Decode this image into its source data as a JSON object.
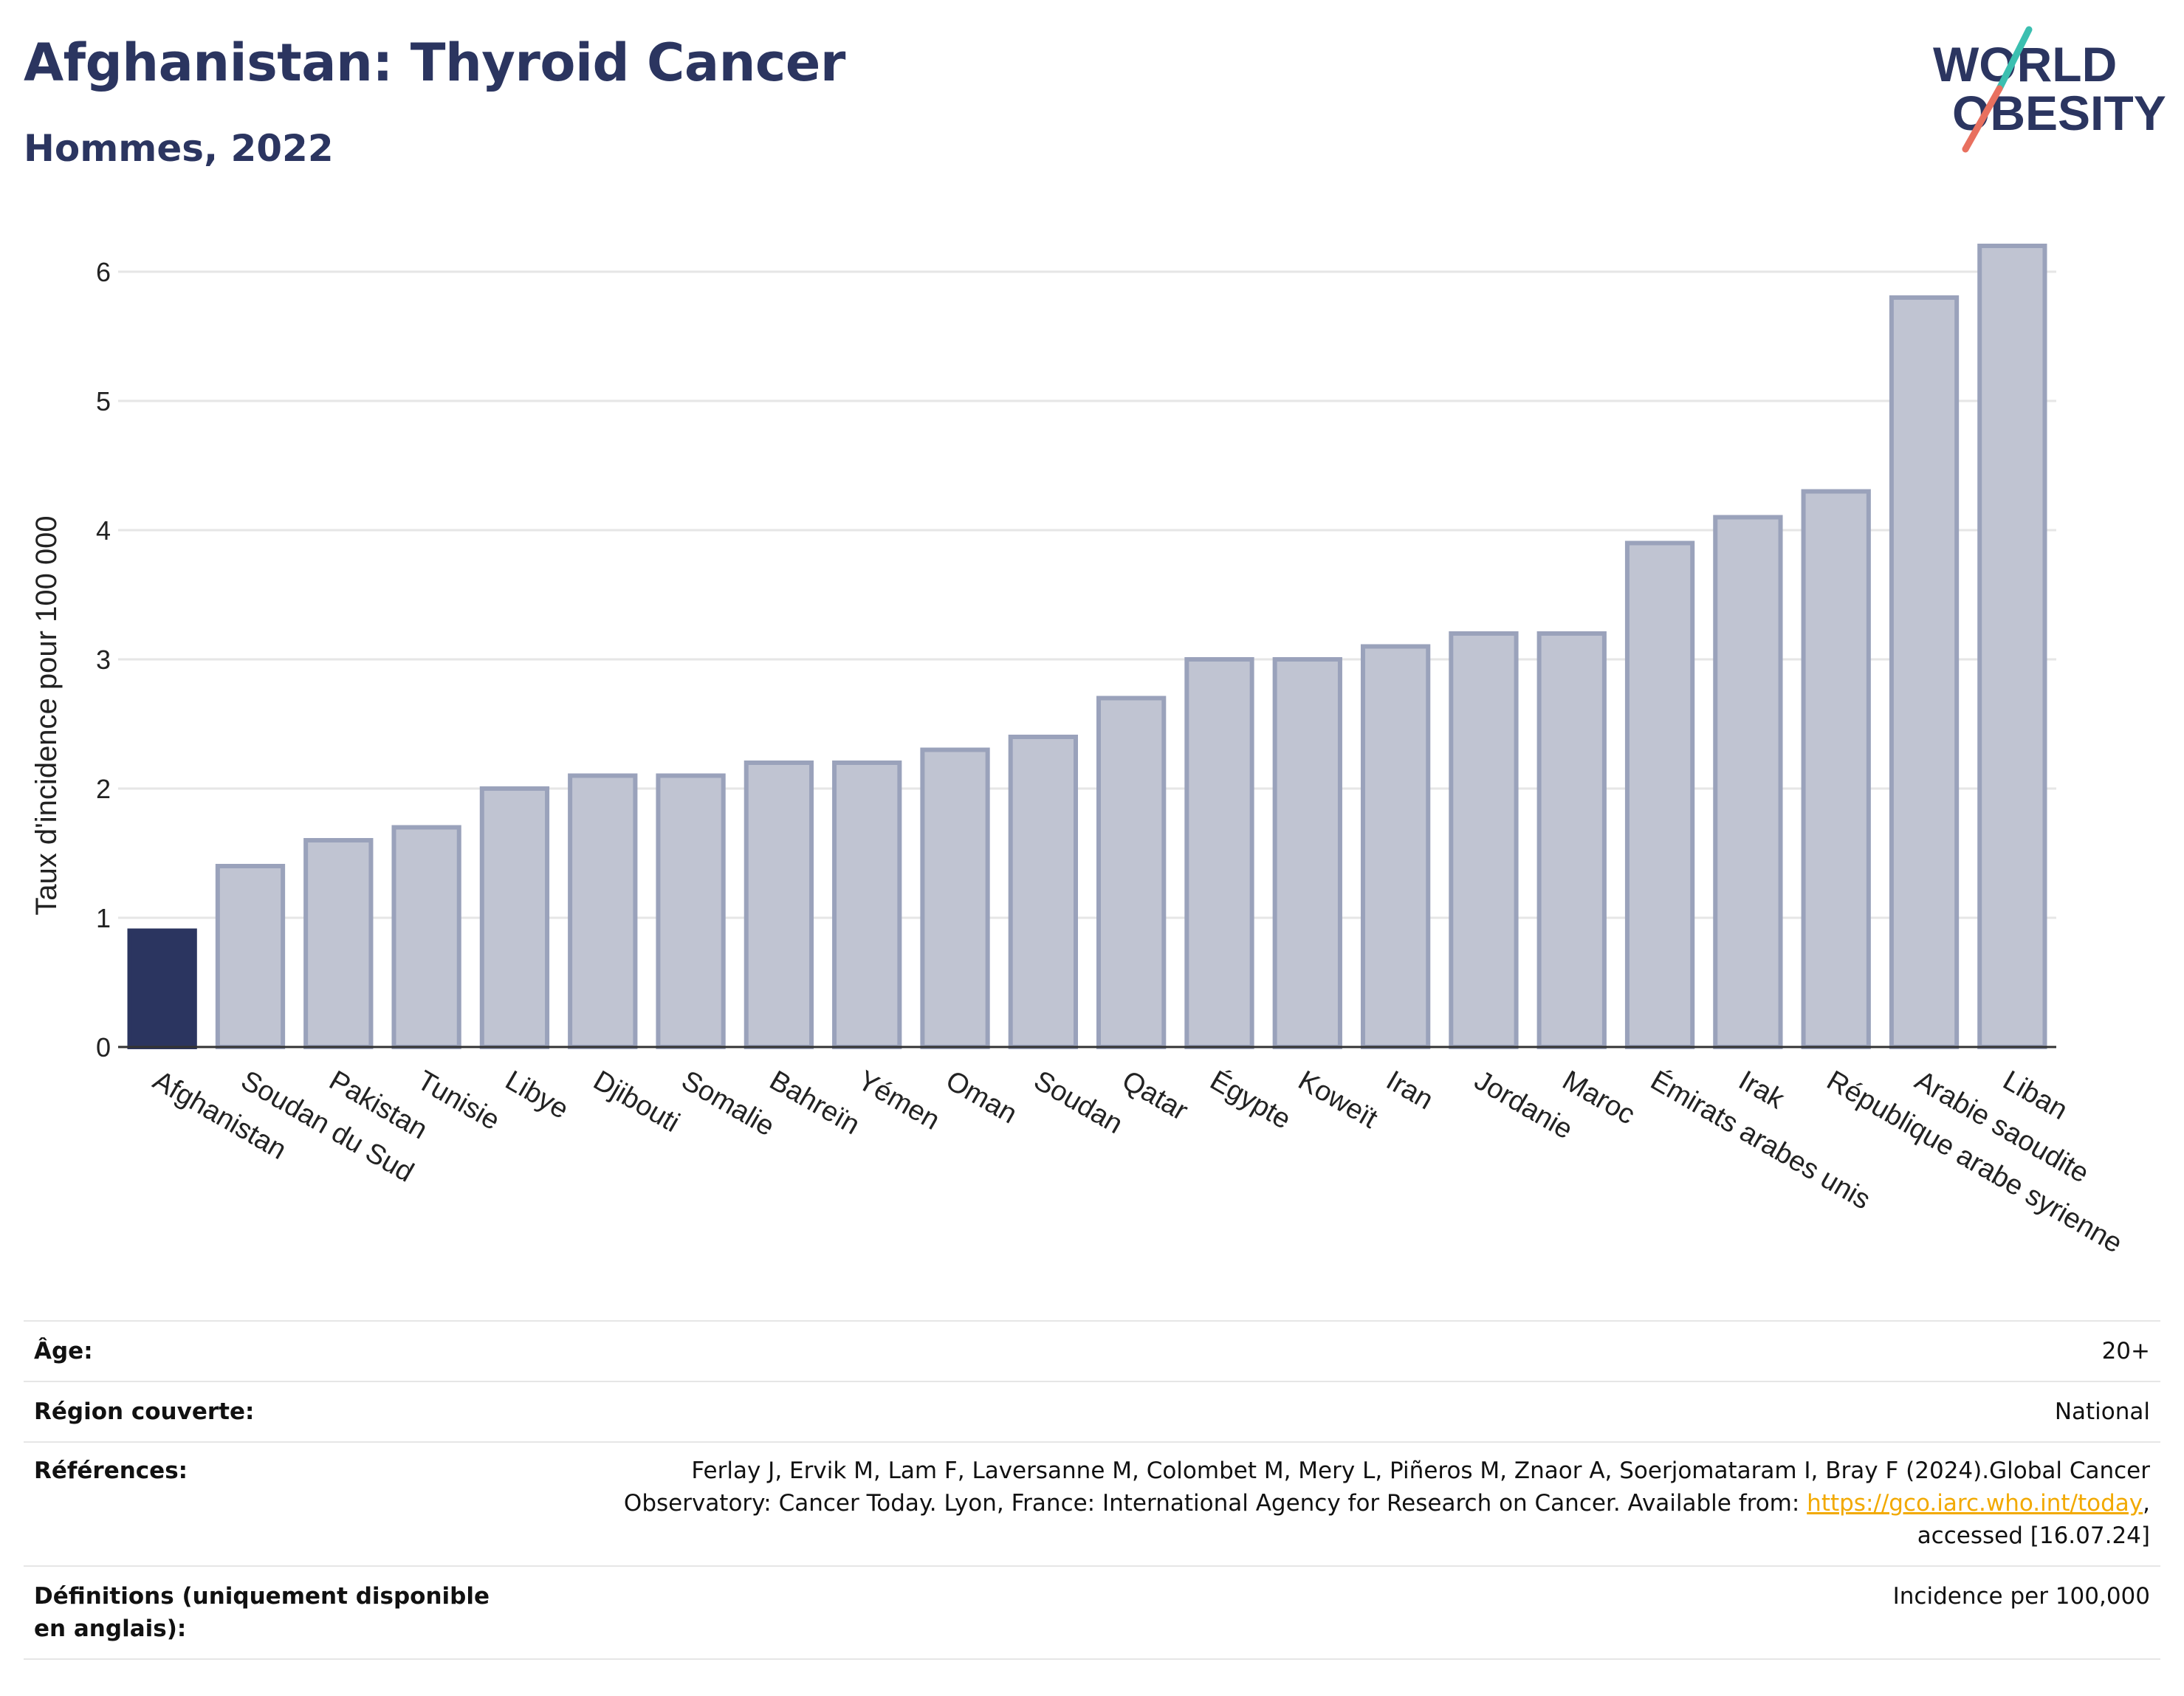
{
  "header": {
    "title": "Afghanistan: Thyroid Cancer",
    "subtitle": "Hommes, 2022"
  },
  "logo": {
    "line1": "WORLD",
    "line2": "OBESITY",
    "accent_teal": "#3bbfb0",
    "accent_coral": "#e8705f",
    "text_color": "#2b3560"
  },
  "colors": {
    "highlight": "#2b3560",
    "bar": "#c0c4d2",
    "bar_stroke": "#9aa2bb",
    "grid": "#e6e6e6"
  },
  "chart_data": {
    "type": "bar",
    "ylabel": "Taux d'incidence pour 100 000",
    "ylim": [
      0,
      6.5
    ],
    "yticks": [
      0,
      1,
      2,
      3,
      4,
      5,
      6
    ],
    "highlight": "Afghanistan",
    "categories": [
      "Afghanistan",
      "Soudan du Sud",
      "Pakistan",
      "Tunisie",
      "Libye",
      "Djibouti",
      "Somalie",
      "Bahreïn",
      "Yémen",
      "Oman",
      "Soudan",
      "Qatar",
      "Égypte",
      "Koweït",
      "Iran",
      "Jordanie",
      "Maroc",
      "Émirats arabes unis",
      "Irak",
      "République arabe syrienne",
      "Arabie saoudite",
      "Liban"
    ],
    "values": [
      0.9,
      1.4,
      1.6,
      1.7,
      2.0,
      2.1,
      2.1,
      2.2,
      2.2,
      2.3,
      2.4,
      2.7,
      3.0,
      3.0,
      3.1,
      3.2,
      3.2,
      3.9,
      4.1,
      4.3,
      5.8,
      6.2
    ]
  },
  "meta": {
    "age_label": "Âge:",
    "age_value": "20+",
    "region_label": "Région couverte:",
    "region_value": "National",
    "ref_label": "Références:",
    "ref_line1": "Ferlay J, Ervik M, Lam F, Laversanne M, Colombet M, Mery L, Piñeros M, Znaor A, Soerjomataram I, Bray F (2024).Global Cancer",
    "ref_line2_pre": "Observatory: Cancer Today. Lyon, France: International Agency for Research on Cancer. Available from: ",
    "ref_link": "https://gco.iarc.who.int/today",
    "ref_line2_post": ",",
    "ref_line3": "accessed [16.07.24]",
    "def_label": "Définitions (uniquement disponible en anglais):",
    "def_value": "Incidence per 100,000"
  }
}
